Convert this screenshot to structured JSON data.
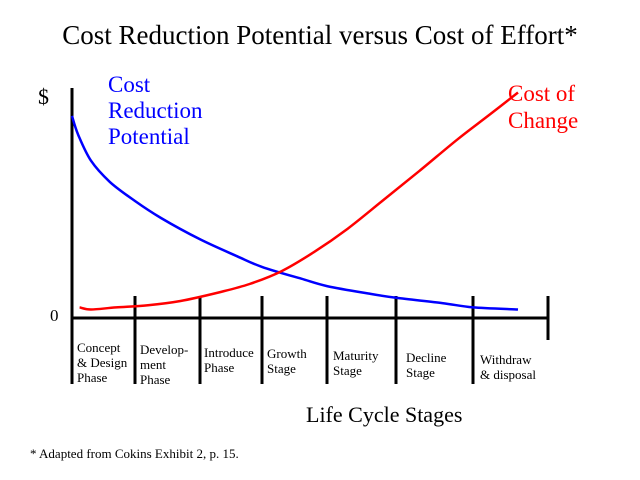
{
  "chart_data": {
    "type": "line",
    "title": "Cost Reduction Potential versus Cost of Effort*",
    "ylabel": "$",
    "y_tick": "0",
    "xlabel": "Life Cycle Stages",
    "categories": [
      [
        "Concept",
        "& Design",
        "Phase"
      ],
      [
        "Develop-",
        "ment",
        "Phase"
      ],
      [
        "Introduce",
        "Phase"
      ],
      [
        "Growth",
        "Stage"
      ],
      [
        "Maturity",
        "Stage"
      ],
      [
        "Decline",
        "Stage"
      ],
      [
        "Withdraw",
        "& disposal"
      ]
    ],
    "series": [
      {
        "name_lines": [
          "Cost",
          "Reduction",
          "Potential"
        ],
        "color": "#0000ff",
        "x": [
          0.0,
          0.1,
          0.3,
          0.6,
          1.0,
          1.4,
          2.0,
          2.6,
          3.0,
          3.6,
          4.0,
          4.6,
          5.0,
          5.6,
          6.0,
          6.6
        ],
        "y": [
          0.95,
          0.86,
          0.74,
          0.64,
          0.55,
          0.47,
          0.37,
          0.29,
          0.24,
          0.185,
          0.15,
          0.115,
          0.095,
          0.07,
          0.05,
          0.04
        ]
      },
      {
        "name_lines": [
          "Cost of",
          "Change"
        ],
        "color": "#ff0000",
        "x": [
          0.12,
          0.3,
          0.7,
          1.2,
          1.7,
          2.3,
          2.8,
          3.3,
          3.8,
          4.3,
          4.8,
          5.3,
          5.8,
          6.2,
          6.6
        ],
        "y": [
          0.05,
          0.04,
          0.05,
          0.06,
          0.08,
          0.12,
          0.16,
          0.22,
          0.31,
          0.42,
          0.55,
          0.69,
          0.84,
          0.95,
          1.06
        ]
      }
    ],
    "xlim": [
      0,
      7
    ],
    "ylim": [
      0,
      1.1
    ],
    "grid": false
  },
  "footnote": "* Adapted from Cokins Exhibit 2, p. 15."
}
